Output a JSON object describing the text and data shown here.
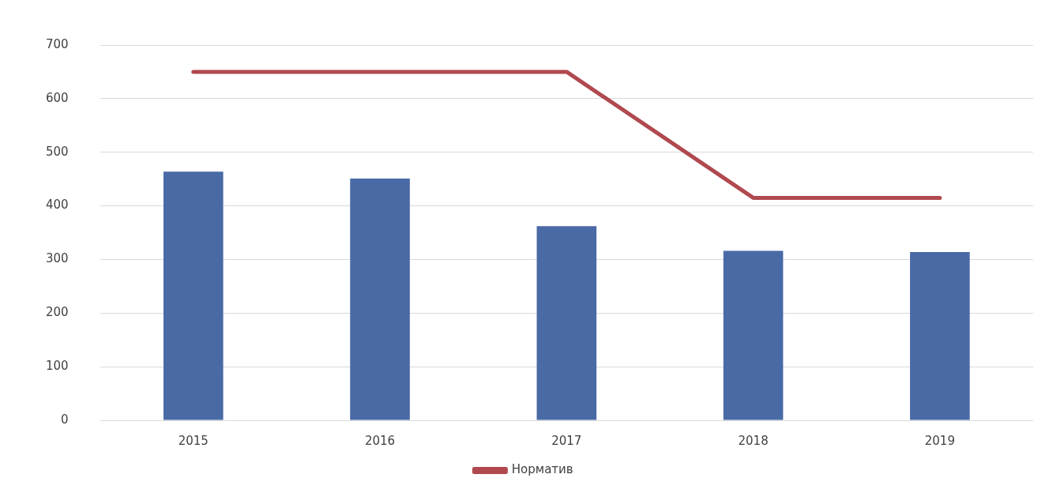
{
  "chart_data": {
    "type": "bar",
    "categories": [
      "2015",
      "2016",
      "2017",
      "2018",
      "2019"
    ],
    "series": [
      {
        "color": "#4a6aa6",
        "values": [
          464,
          451,
          362,
          316,
          314
        ]
      },
      {
        "type": "line",
        "name": "Норматив",
        "color": "#b0494f",
        "values": [
          650,
          650,
          650,
          415,
          415
        ]
      }
    ],
    "ylim": [
      0,
      700
    ],
    "yticks": [
      0,
      100,
      200,
      300,
      400,
      500,
      600,
      700
    ],
    "grid": "y",
    "legend": "bottom",
    "marker": "none"
  }
}
